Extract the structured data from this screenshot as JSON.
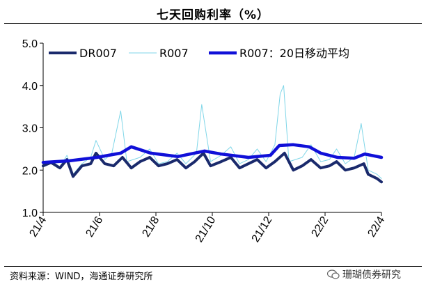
{
  "header": {
    "title": "七天回购利率（%）"
  },
  "footer": {
    "source": "资料来源：WIND，海通证券研究所",
    "watermark": "珊瑚债券研究"
  },
  "chart_data": {
    "type": "line",
    "title": "七天回购利率（%）",
    "xlabel": "",
    "ylabel": "",
    "ylim": [
      1.0,
      5.0
    ],
    "yticks": [
      "1.0",
      "2.0",
      "3.0",
      "4.0",
      "5.0"
    ],
    "xticks": [
      "21/4",
      "21/6",
      "21/8",
      "21/10",
      "21/12",
      "22/2",
      "22/4"
    ],
    "x_range": [
      "2021-04-01",
      "2022-04-20"
    ],
    "grid": false,
    "legend_position": "top",
    "series": [
      {
        "name": "DR007",
        "color": "#1a2a6c",
        "points": [
          [
            "2021-04-01",
            2.1
          ],
          [
            "2021-04-10",
            2.18
          ],
          [
            "2021-04-20",
            2.05
          ],
          [
            "2021-04-28",
            2.25
          ],
          [
            "2021-05-05",
            1.85
          ],
          [
            "2021-05-15",
            2.1
          ],
          [
            "2021-05-25",
            2.15
          ],
          [
            "2021-05-31",
            2.4
          ],
          [
            "2021-06-10",
            2.15
          ],
          [
            "2021-06-20",
            2.1
          ],
          [
            "2021-06-30",
            2.3
          ],
          [
            "2021-07-10",
            2.05
          ],
          [
            "2021-07-20",
            2.2
          ],
          [
            "2021-07-31",
            2.3
          ],
          [
            "2021-08-10",
            2.1
          ],
          [
            "2021-08-20",
            2.15
          ],
          [
            "2021-08-31",
            2.25
          ],
          [
            "2021-09-10",
            2.05
          ],
          [
            "2021-09-20",
            2.2
          ],
          [
            "2021-09-30",
            2.4
          ],
          [
            "2021-10-08",
            2.1
          ],
          [
            "2021-10-20",
            2.2
          ],
          [
            "2021-10-31",
            2.3
          ],
          [
            "2021-11-10",
            2.05
          ],
          [
            "2021-11-20",
            2.15
          ],
          [
            "2021-11-30",
            2.25
          ],
          [
            "2021-12-10",
            2.05
          ],
          [
            "2021-12-20",
            2.2
          ],
          [
            "2021-12-31",
            2.4
          ],
          [
            "2022-01-10",
            2.0
          ],
          [
            "2022-01-20",
            2.1
          ],
          [
            "2022-01-30",
            2.25
          ],
          [
            "2022-02-10",
            2.05
          ],
          [
            "2022-02-20",
            2.1
          ],
          [
            "2022-02-28",
            2.2
          ],
          [
            "2022-03-10",
            2.0
          ],
          [
            "2022-03-20",
            2.05
          ],
          [
            "2022-03-31",
            2.15
          ],
          [
            "2022-04-05",
            1.9
          ],
          [
            "2022-04-15",
            1.8
          ],
          [
            "2022-04-20",
            1.72
          ]
        ]
      },
      {
        "name": "R007",
        "color": "#7fd6e8",
        "points": [
          [
            "2021-04-01",
            2.12
          ],
          [
            "2021-04-10",
            2.22
          ],
          [
            "2021-04-20",
            2.08
          ],
          [
            "2021-04-28",
            2.35
          ],
          [
            "2021-05-05",
            1.9
          ],
          [
            "2021-05-15",
            2.15
          ],
          [
            "2021-05-25",
            2.3
          ],
          [
            "2021-05-31",
            2.7
          ],
          [
            "2021-06-10",
            2.25
          ],
          [
            "2021-06-18",
            2.4
          ],
          [
            "2021-06-25",
            3.1
          ],
          [
            "2021-06-28",
            3.4
          ],
          [
            "2021-07-05",
            2.2
          ],
          [
            "2021-07-20",
            2.3
          ],
          [
            "2021-07-31",
            2.5
          ],
          [
            "2021-08-10",
            2.15
          ],
          [
            "2021-08-20",
            2.2
          ],
          [
            "2021-08-31",
            2.4
          ],
          [
            "2021-09-10",
            2.15
          ],
          [
            "2021-09-22",
            2.4
          ],
          [
            "2021-09-28",
            3.55
          ],
          [
            "2021-10-08",
            2.2
          ],
          [
            "2021-10-20",
            2.35
          ],
          [
            "2021-10-31",
            2.55
          ],
          [
            "2021-11-10",
            2.15
          ],
          [
            "2021-11-20",
            2.25
          ],
          [
            "2021-11-30",
            2.5
          ],
          [
            "2021-12-10",
            2.2
          ],
          [
            "2021-12-20",
            2.6
          ],
          [
            "2021-12-26",
            3.8
          ],
          [
            "2021-12-30",
            4.0
          ],
          [
            "2022-01-05",
            2.2
          ],
          [
            "2022-01-20",
            2.3
          ],
          [
            "2022-01-30",
            2.6
          ],
          [
            "2022-02-10",
            2.2
          ],
          [
            "2022-02-20",
            2.25
          ],
          [
            "2022-02-28",
            2.5
          ],
          [
            "2022-03-10",
            2.15
          ],
          [
            "2022-03-20",
            2.3
          ],
          [
            "2022-03-28",
            3.1
          ],
          [
            "2022-04-05",
            2.0
          ],
          [
            "2022-04-15",
            1.9
          ],
          [
            "2022-04-20",
            1.8
          ]
        ]
      },
      {
        "name": "R007：20日移动平均",
        "color": "#1010d8",
        "points": [
          [
            "2021-04-01",
            2.18
          ],
          [
            "2021-05-01",
            2.22
          ],
          [
            "2021-06-01",
            2.3
          ],
          [
            "2021-06-28",
            2.4
          ],
          [
            "2021-07-10",
            2.55
          ],
          [
            "2021-08-01",
            2.4
          ],
          [
            "2021-09-01",
            2.32
          ],
          [
            "2021-10-01",
            2.45
          ],
          [
            "2021-10-20",
            2.38
          ],
          [
            "2021-11-20",
            2.3
          ],
          [
            "2021-12-15",
            2.35
          ],
          [
            "2021-12-25",
            2.58
          ],
          [
            "2022-01-10",
            2.6
          ],
          [
            "2022-01-28",
            2.55
          ],
          [
            "2022-02-10",
            2.4
          ],
          [
            "2022-03-01",
            2.3
          ],
          [
            "2022-03-20",
            2.28
          ],
          [
            "2022-04-01",
            2.38
          ],
          [
            "2022-04-20",
            2.3
          ]
        ]
      }
    ]
  }
}
